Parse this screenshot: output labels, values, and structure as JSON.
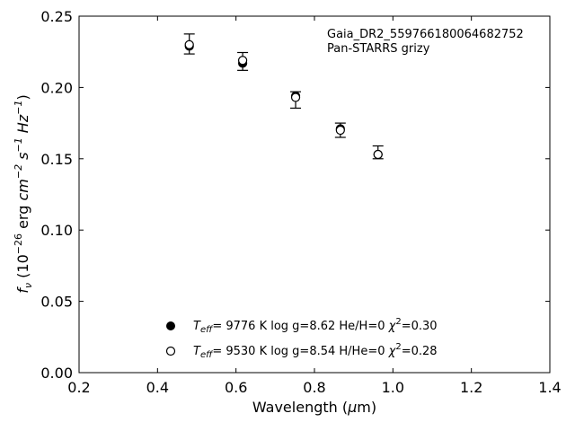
{
  "chart_data": {
    "type": "scatter",
    "xlabel_text": "Wavelength (",
    "xlabel_mu": "μ",
    "xlabel_unit": "m)",
    "ylabel_f": "f",
    "ylabel_sub": "ν",
    "ylabel_mid": " (10",
    "ylabel_exp1": "−26",
    "ylabel_erg": " erg ",
    "ylabel_cm": "cm",
    "ylabel_exp2": "−2",
    "ylabel_s": " s",
    "ylabel_exp3": "−1",
    "ylabel_hz": " Hz",
    "ylabel_exp4": "−1",
    "ylabel_close": ")",
    "xlim": [
      0.2,
      1.4
    ],
    "ylim": [
      0.0,
      0.25
    ],
    "x_ticks": [
      0.2,
      0.4,
      0.6,
      0.8,
      1.0,
      1.2,
      1.4
    ],
    "x_tick_labels": [
      "0.2",
      "0.4",
      "0.6",
      "0.8",
      "1.0",
      "1.2",
      "1.4"
    ],
    "y_ticks": [
      0.0,
      0.05,
      0.1,
      0.15,
      0.2,
      0.25
    ],
    "y_tick_labels": [
      "0.00",
      "0.05",
      "0.10",
      "0.15",
      "0.20",
      "0.25"
    ],
    "grid": false,
    "annotation": {
      "object_name": "Gaia_DR2_559766180064682752",
      "survey": "Pan-STARRS grizy"
    },
    "observed": {
      "x": [
        0.481,
        0.617,
        0.752,
        0.866,
        0.962
      ],
      "y": [
        0.23,
        0.218,
        0.191,
        0.17,
        0.154
      ],
      "yerr_low": [
        0.0065,
        0.006,
        0.0055,
        0.005,
        0.004
      ],
      "yerr_high": [
        0.0075,
        0.0065,
        0.006,
        0.005,
        0.005
      ]
    },
    "series": [
      {
        "marker": "filled",
        "x": [
          0.481,
          0.617,
          0.752,
          0.866,
          0.962
        ],
        "y": [
          0.229,
          0.217,
          0.194,
          0.171,
          0.153
        ],
        "teff_label": "T",
        "teff_sub": "eff",
        "legend_rest": "=  9776 K  log g=8.62  He/H=0  ",
        "chi_symbol": "χ",
        "chi_exp": "2",
        "chi_value": "=0.30"
      },
      {
        "marker": "open",
        "x": [
          0.481,
          0.617,
          0.752,
          0.866,
          0.962
        ],
        "y": [
          0.23,
          0.219,
          0.193,
          0.17,
          0.153
        ],
        "teff_label": "T",
        "teff_sub": "eff",
        "legend_rest": "=  9530 K  log g=8.54  H/He=0  ",
        "chi_symbol": "χ",
        "chi_exp": "2",
        "chi_value": "=0.28"
      }
    ]
  }
}
